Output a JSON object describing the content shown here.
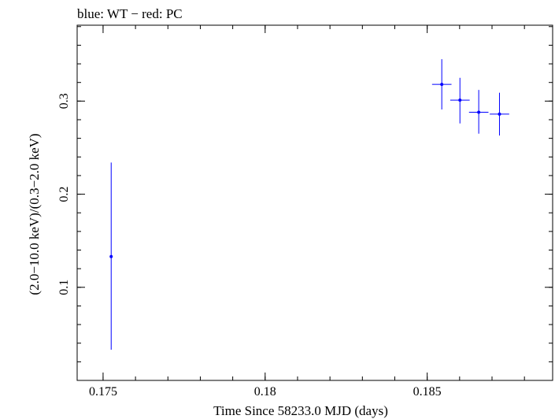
{
  "chart_data": {
    "type": "scatter",
    "title": "blue: WT − red: PC",
    "xlabel": "Time Since 58233.0 MJD (days)",
    "ylabel": "(2.0−10.0 keV)/(0.3−2.0 keV)",
    "xlim": [
      0.1742,
      0.18887
    ],
    "ylim": [
      0.0,
      0.3815
    ],
    "xticks": [
      {
        "value": 0.175,
        "label": "0.175"
      },
      {
        "value": 0.18,
        "label": "0.18"
      },
      {
        "value": 0.185,
        "label": "0.185"
      }
    ],
    "xminor_step": 0.001,
    "yticks": [
      {
        "value": 0.1,
        "label": "0.1"
      },
      {
        "value": 0.2,
        "label": "0.2"
      },
      {
        "value": 0.3,
        "label": "0.3"
      }
    ],
    "yminor_step": 0.02,
    "grid": false,
    "series": [
      {
        "name": "WT",
        "color": "#0000ff",
        "points": [
          {
            "x": 0.17525,
            "xerr": 0.0,
            "y": 0.133,
            "yerr_lo": 0.1,
            "yerr_hi": 0.101
          },
          {
            "x": 0.18545,
            "xerr": 0.0003,
            "y": 0.318,
            "yerr_lo": 0.027,
            "yerr_hi": 0.027
          },
          {
            "x": 0.18601,
            "xerr": 0.0003,
            "y": 0.301,
            "yerr_lo": 0.025,
            "yerr_hi": 0.024
          },
          {
            "x": 0.18659,
            "xerr": 0.0003,
            "y": 0.288,
            "yerr_lo": 0.023,
            "yerr_hi": 0.024
          },
          {
            "x": 0.18723,
            "xerr": 0.0003,
            "y": 0.286,
            "yerr_lo": 0.023,
            "yerr_hi": 0.023
          }
        ]
      }
    ]
  }
}
